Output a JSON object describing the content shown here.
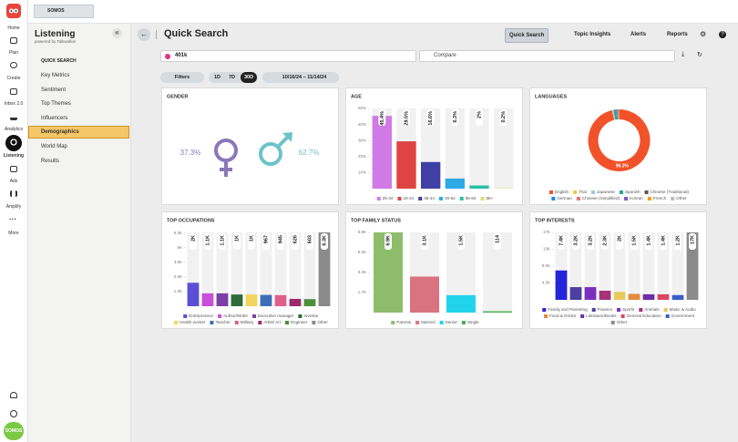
{
  "nav": {
    "items": [
      "Home",
      "Plan",
      "Create",
      "Inbox 2.0",
      "Analytics",
      "Listening",
      "Ads",
      "Amplify",
      "More"
    ],
    "avatar": "SOMOS"
  },
  "top_badge": "SOMOS",
  "sidebar": {
    "title": "Listening",
    "subtitle": "powered by Talkwalker",
    "section": "QUICK SEARCH",
    "items": [
      "Key Metrics",
      "Sentiment",
      "Top Themes",
      "Influencers",
      "Demographics",
      "World Map",
      "Results"
    ]
  },
  "header": {
    "title": "Quick Search",
    "tabs": [
      "Quick Search",
      "Topic Insights",
      "Alerts",
      "Reports"
    ]
  },
  "search": {
    "query": "401k",
    "compare": "Compare"
  },
  "filters": {
    "button": "Filters",
    "ranges": [
      "1D",
      "7D",
      "30D"
    ],
    "date": "10/16/24 – 11/14/24"
  },
  "chart_data": [
    {
      "type": "gender",
      "title": "GENDER",
      "values": [
        37.3,
        62.7
      ],
      "value_labels": [
        "37.3%",
        "62.7%"
      ],
      "colors": [
        "#8a78b8",
        "#6cc3c9"
      ]
    },
    {
      "type": "bar",
      "title": "AGE",
      "categories": [
        "25-34",
        "18-24",
        "35-44",
        "45-54",
        "55-64",
        "65+"
      ],
      "values": [
        45.4,
        29.5,
        16.6,
        6.3,
        2,
        0.2
      ],
      "value_labels": [
        "45.4%",
        "29.5%",
        "16.6%",
        "6.3%",
        "2%",
        "0.2%"
      ],
      "colors": [
        "#d17ae6",
        "#df4343",
        "#3f3fa6",
        "#2fa8e6",
        "#2bbfa6",
        "#dcdc6c"
      ],
      "ylim": [
        0,
        50
      ],
      "yticks": [
        {
          "value": 10,
          "label": "10%"
        },
        {
          "value": 20,
          "label": "20%"
        },
        {
          "value": 30,
          "label": "30%"
        },
        {
          "value": 40,
          "label": "40%"
        },
        {
          "value": 50,
          "label": "50%"
        }
      ]
    },
    {
      "type": "pie",
      "title": "LANGUAGES",
      "categories": [
        "English",
        "Thai",
        "Japanese",
        "Spanish",
        "Chinese (Traditional)",
        "German",
        "Chinese (Simplified)",
        "Korean",
        "French",
        "Other"
      ],
      "values": [
        96.3,
        0.3,
        0.5,
        1.3,
        0.2,
        0.4,
        0.3,
        0.2,
        0.3,
        0.2
      ],
      "value_labels": [
        "96.3%",
        null,
        null,
        null,
        null,
        null,
        null,
        null,
        null,
        null
      ],
      "colors": [
        "#f2522a",
        "#f2c94c",
        "#9ecbe8",
        "#26a69a",
        "#555555",
        "#1e88e5",
        "#e57373",
        "#7e57c2",
        "#ff9800",
        "#bdbdbd"
      ]
    },
    {
      "type": "bar",
      "title": "TOP OCCUPATIONS",
      "categories": [
        "Entrepreneur",
        "Author/Writer",
        "Executive manager",
        "Investor",
        "Health worker",
        "Teacher",
        "Military",
        "Artist/ Art",
        "Engineer",
        "Other"
      ],
      "values": [
        2000,
        1100,
        1100,
        1000,
        1000,
        967,
        945,
        626,
        603,
        6300
      ],
      "value_labels": [
        "2K",
        "1.1K",
        "1.1K",
        "1K",
        "1K",
        "967",
        "945",
        "626",
        "603",
        "6.3K"
      ],
      "colors": [
        "#5b4fd6",
        "#c84fd8",
        "#7b3fa8",
        "#2e6b3a",
        "#f2d45c",
        "#3d6fb5",
        "#e05f8a",
        "#9c2a6b",
        "#4c8f3a",
        "#8a8a8a"
      ],
      "ylim": [
        0,
        6300
      ],
      "yticks": [
        {
          "value": 1250,
          "label": "1.3K"
        },
        {
          "value": 2500,
          "label": "2.5K"
        },
        {
          "value": 3750,
          "label": "3.8K"
        },
        {
          "value": 5000,
          "label": "5K"
        },
        {
          "value": 6250,
          "label": "6.3K"
        }
      ]
    },
    {
      "type": "bar",
      "title": "TOP FAMILY STATUS",
      "categories": [
        "Parents",
        "Married",
        "Senior",
        "Single"
      ],
      "values": [
        6900,
        3100,
        1500,
        114
      ],
      "value_labels": [
        "6.9K",
        "3.1K",
        "1.5K",
        "114"
      ],
      "colors": [
        "#8dbd6b",
        "#d9737f",
        "#22d3ee",
        "#4caf50"
      ],
      "ylim": [
        0,
        6900
      ],
      "yticks": [
        {
          "value": 1725,
          "label": "1.7K"
        },
        {
          "value": 3450,
          "label": "3.4K"
        },
        {
          "value": 5175,
          "label": "5.2K"
        },
        {
          "value": 6900,
          "label": "6.9K"
        }
      ]
    },
    {
      "type": "bar",
      "title": "TOP INTERESTS",
      "categories": [
        "Family and Parenting",
        "Finance",
        "Sports",
        "Animals",
        "Music & Audio",
        "Food & Drinks",
        "Literature/Books",
        "General Education",
        "Government",
        "Other"
      ],
      "values": [
        7400,
        3200,
        3200,
        2300,
        2000,
        1500,
        1400,
        1400,
        1200,
        17000
      ],
      "value_labels": [
        "7.4K",
        "3.2K",
        "3.2K",
        "2.3K",
        "2K",
        "1.5K",
        "1.4K",
        "1.4K",
        "1.2K",
        "17K"
      ],
      "colors": [
        "#2424d9",
        "#4b3fa0",
        "#7b2fbf",
        "#a83279",
        "#e8c95a",
        "#e58a3a",
        "#6f2da8",
        "#d9475f",
        "#3a5fc8",
        "#8a8a8a"
      ],
      "ylim": [
        0,
        17000
      ],
      "yticks": [
        {
          "value": 4250,
          "label": "4.3K"
        },
        {
          "value": 8500,
          "label": "8.5K"
        },
        {
          "value": 12750,
          "label": "13K"
        },
        {
          "value": 17000,
          "label": "17K"
        }
      ]
    }
  ]
}
